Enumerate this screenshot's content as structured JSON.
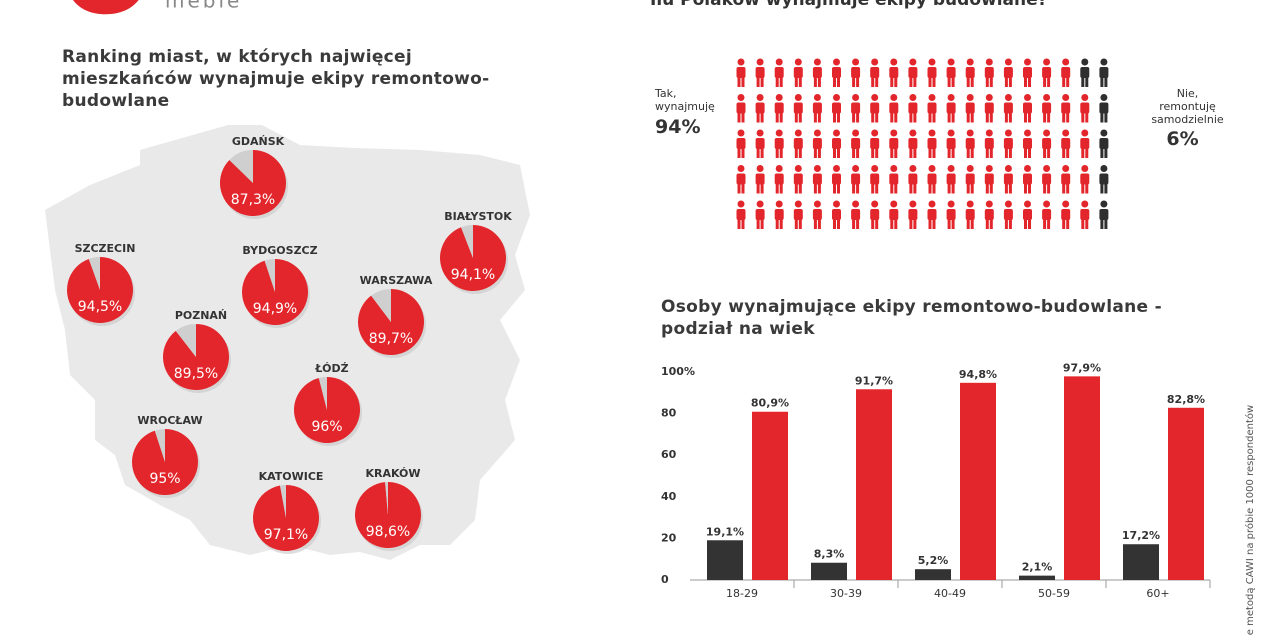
{
  "header": {
    "logo": "meble",
    "question": "Ilu Polaków wynajmuje ekipy budowlane?"
  },
  "footnote": "e metodą CAWI na próbie 1000 respondentów",
  "chart_data": [
    {
      "type": "pie-map",
      "title": "Ranking miast, w których najwięcej mieszkańców wynajmuje ekipy remontowo-budowlane",
      "categories": [
        "GDAŃSK",
        "BIAŁYSTOK",
        "SZCZECIN",
        "BYDGOSZCZ",
        "WARSZAWA",
        "POZNAŃ",
        "ŁÓDŹ",
        "WROCŁAW",
        "KATOWICE",
        "KRAKÓW"
      ],
      "values": [
        87.3,
        94.1,
        94.5,
        94.9,
        89.7,
        89.5,
        96,
        95,
        97.1,
        98.6
      ],
      "value_labels": [
        "87,3%",
        "94,1%",
        "94,5%",
        "94,9%",
        "89,7%",
        "89,5%",
        "96%",
        "95%",
        "97,1%",
        "98,6%"
      ],
      "color": "#e3262b",
      "rest_color": "#cfcfcf"
    },
    {
      "type": "pictogram",
      "categories": [
        "Tak, wynajmuję",
        "Nie, remontuję samodzielnie"
      ],
      "values": [
        94,
        6
      ],
      "value_labels": [
        "94%",
        "6%"
      ],
      "colors": [
        "#e3262b",
        "#2f2f2f"
      ]
    },
    {
      "type": "bar",
      "title": "Osoby wynajmujące ekipy remontowo-budowlane - podział na wiek",
      "categories": [
        "18-29",
        "30-39",
        "40-49",
        "50-59",
        "60+"
      ],
      "series": [
        {
          "color": "#333333",
          "values": [
            19.1,
            8.3,
            5.2,
            2.1,
            17.2
          ],
          "value_labels": [
            "19,1%",
            "8,3%",
            "5,2%",
            "2,1%",
            "17,2%"
          ]
        },
        {
          "color": "#e3262b",
          "values": [
            80.9,
            91.7,
            94.8,
            97.9,
            82.8
          ],
          "value_labels": [
            "80,9%",
            "91,7%",
            "94,8%",
            "97,9%",
            "82,8%"
          ]
        }
      ],
      "ylim": [
        0,
        100
      ],
      "yticks": [
        0,
        20,
        40,
        60,
        80,
        {
          "value": 100,
          "label": "100%"
        }
      ]
    }
  ]
}
